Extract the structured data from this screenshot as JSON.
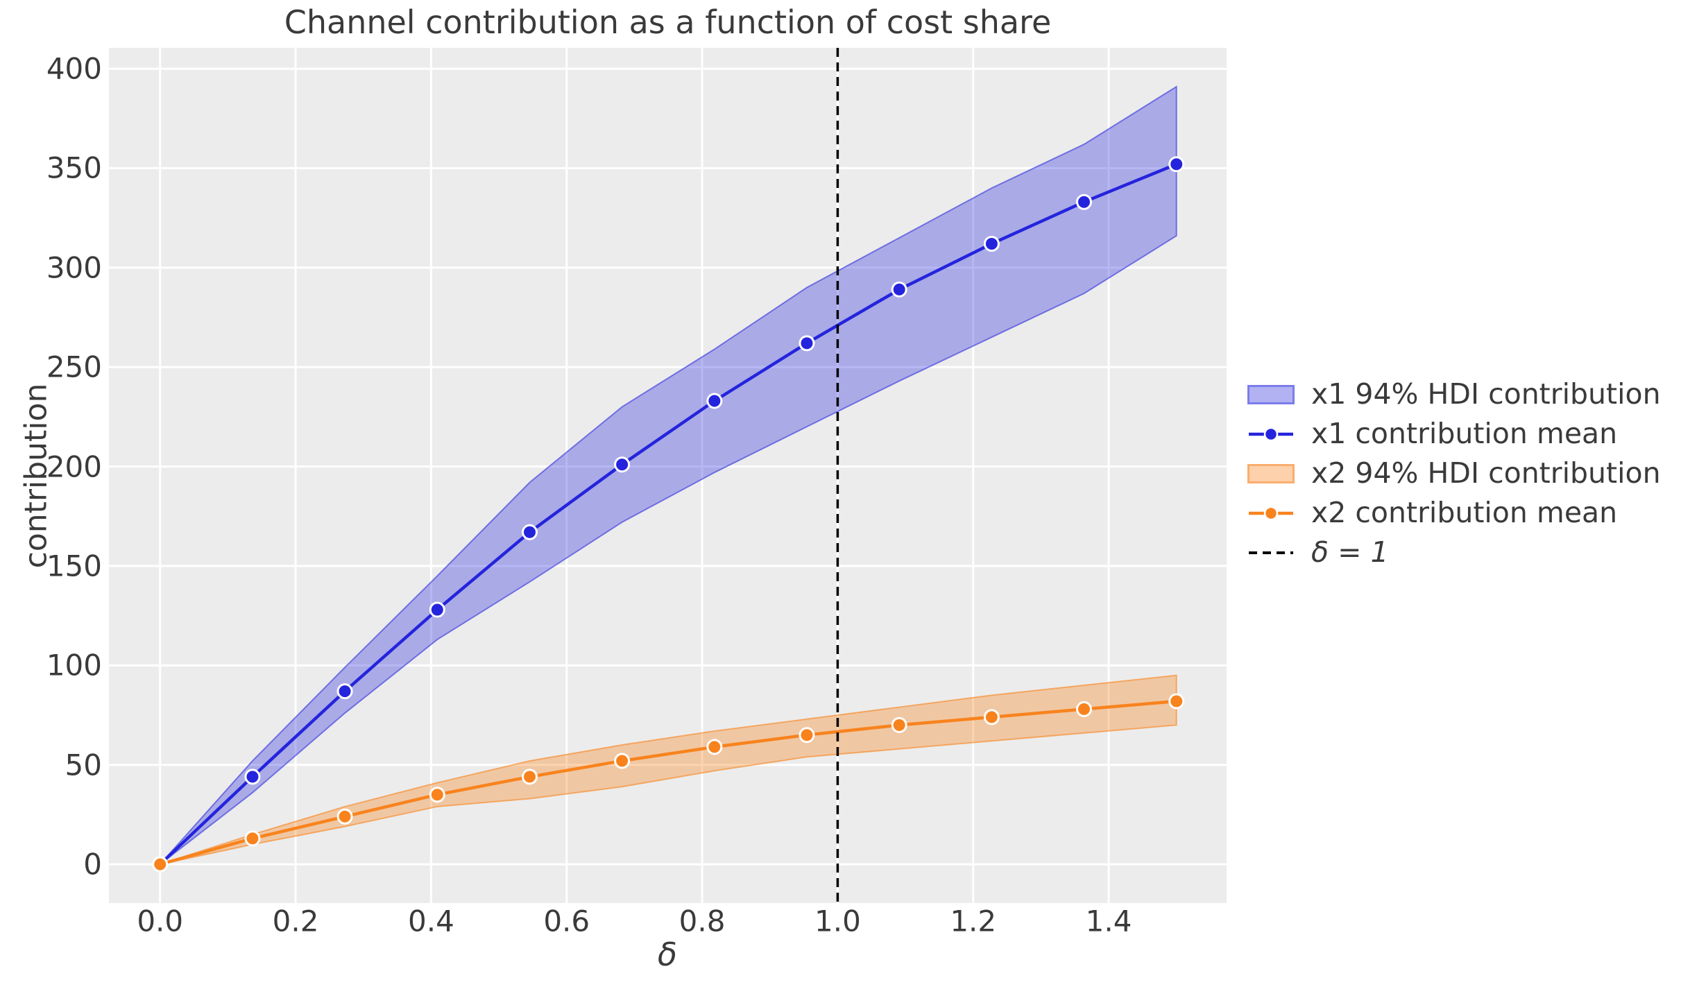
{
  "figure": {
    "title": "Channel contribution as a function of cost share"
  },
  "axes": {
    "xlabel": "δ",
    "ylabel": "contribution",
    "xtick_labels": [
      "0.0",
      "0.2",
      "0.4",
      "0.6",
      "0.8",
      "1.0",
      "1.2",
      "1.4"
    ],
    "xtick_values": [
      0.0,
      0.2,
      0.4,
      0.6,
      0.8,
      1.0,
      1.2,
      1.4
    ],
    "ytick_labels": [
      "0",
      "50",
      "100",
      "150",
      "200",
      "250",
      "300",
      "350",
      "400"
    ],
    "ytick_values": [
      0,
      50,
      100,
      150,
      200,
      250,
      300,
      350,
      400
    ],
    "xlim": [
      -0.0755,
      1.574
    ],
    "ylim": [
      -19.5,
      410.5
    ],
    "grid": true,
    "background": "#ececec",
    "grid_color": "#ffffff",
    "text_color": "#3a3a3a"
  },
  "legend": {
    "position": "right-outside",
    "items": [
      {
        "label": "x1 94% HDI contribution",
        "type": "band",
        "color": "#2424dd"
      },
      {
        "label": "x1 contribution mean",
        "type": "line-dot",
        "color": "#2424dd"
      },
      {
        "label": "x2 94% HDI contribution",
        "type": "band",
        "color": "#f8831d"
      },
      {
        "label": "x2 contribution mean",
        "type": "line-dot",
        "color": "#f8831d"
      },
      {
        "label": "δ = 1",
        "type": "dashed",
        "color": "#000000"
      }
    ]
  },
  "chart_data": {
    "type": "line",
    "title": "Channel contribution as a function of cost share",
    "xlabel": "δ",
    "ylabel": "contribution",
    "xlim": [
      -0.0755,
      1.574
    ],
    "ylim": [
      -19.5,
      410.5
    ],
    "x": [
      0.0,
      0.1364,
      0.2727,
      0.4091,
      0.5455,
      0.6818,
      0.8182,
      0.9545,
      1.0909,
      1.2273,
      1.3636,
      1.5
    ],
    "series": [
      {
        "name": "x1 contribution mean",
        "color": "#2424dd",
        "values": [
          0,
          44,
          87,
          128,
          167,
          201,
          233,
          262,
          289,
          312,
          333,
          352
        ],
        "band": {
          "name": "x1 94% HDI contribution",
          "low": [
            0,
            36,
            76,
            113,
            142,
            172,
            197,
            220,
            243,
            265,
            287,
            316
          ],
          "high": [
            0,
            52,
            99,
            145,
            192,
            230,
            259,
            290,
            315,
            340,
            362,
            391
          ],
          "fill_alpha": 0.33,
          "edge_alpha": 0.55
        }
      },
      {
        "name": "x2 contribution mean",
        "color": "#f8831d",
        "values": [
          0,
          13,
          24,
          35,
          44,
          52,
          59,
          65,
          70,
          74,
          78,
          82
        ],
        "band": {
          "name": "x2 94% HDI contribution",
          "low": [
            0,
            10,
            19,
            29,
            33,
            39,
            47,
            54,
            58,
            62,
            66,
            70
          ],
          "high": [
            0,
            15,
            29,
            41,
            52,
            60,
            67,
            73,
            79,
            85,
            90,
            95
          ],
          "fill_alpha": 0.35,
          "edge_alpha": 0.6
        }
      }
    ],
    "vline": {
      "x": 1.0,
      "label": "δ = 1",
      "color": "#000000",
      "style": "dashed"
    }
  }
}
